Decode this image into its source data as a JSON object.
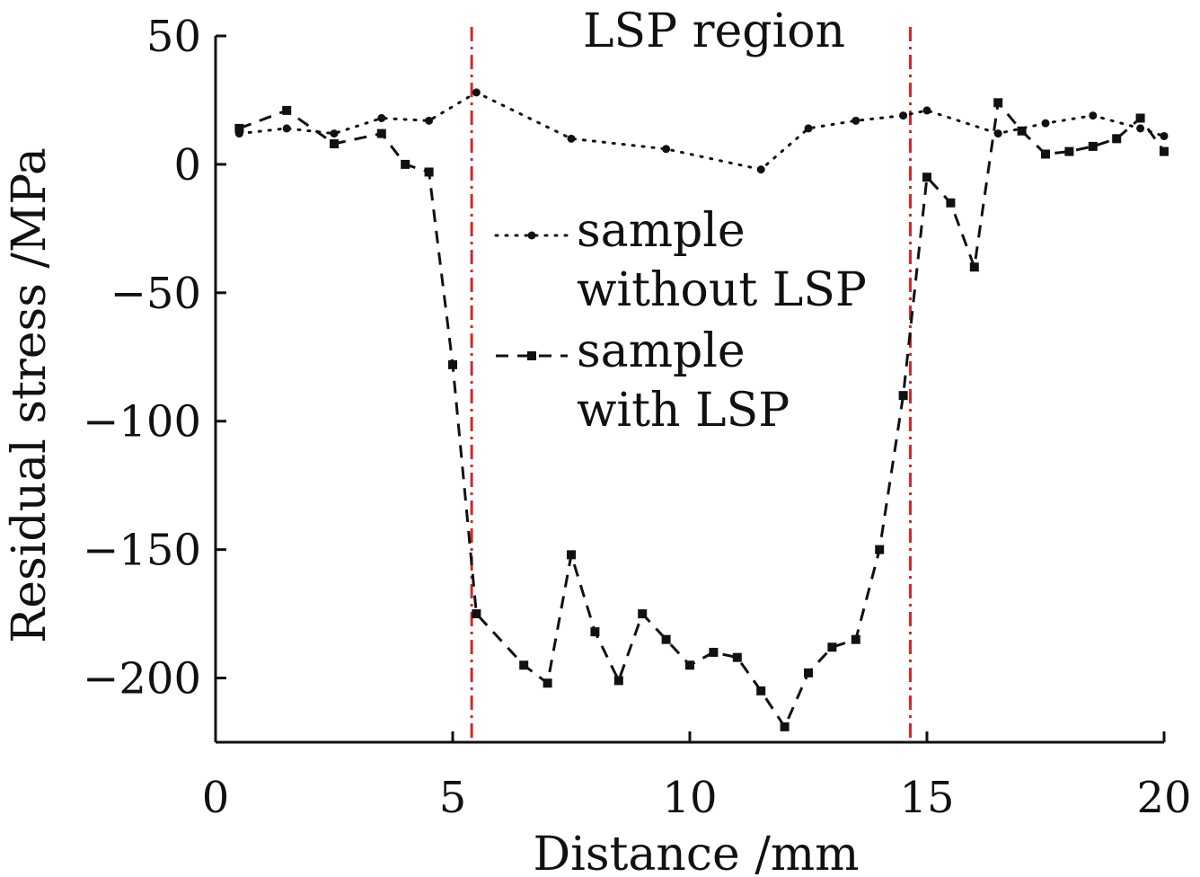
{
  "chart_data": {
    "type": "line",
    "title": "",
    "xlabel": "Distance /mm",
    "ylabel": "Residual stress /MPa",
    "xlim": [
      0,
      20
    ],
    "ylim": [
      -225,
      50
    ],
    "xticks": [
      0,
      5,
      10,
      15,
      20
    ],
    "yticks": [
      50,
      0,
      -50,
      -100,
      -150,
      -200
    ],
    "xtick_labels": [
      "0",
      "5",
      "10",
      "15",
      "20"
    ],
    "ytick_labels": [
      "50",
      "0",
      "−50",
      "−100",
      "−150",
      "−200"
    ],
    "grid": false,
    "legend_position": "center",
    "series": [
      {
        "name": "sample without LSP",
        "legend_lines": [
          "sample",
          "without LSP"
        ],
        "style": "dotted",
        "marker": "circle",
        "color": "#111111",
        "x": [
          0.5,
          1.5,
          2.5,
          3.5,
          4.5,
          5.5,
          7.5,
          9.5,
          11.5,
          12.5,
          13.5,
          14.5,
          15.0,
          16.5,
          17.5,
          18.5,
          19.5,
          20.0
        ],
        "y": [
          12,
          14,
          12,
          18,
          17,
          28,
          10,
          6,
          -2,
          14,
          17,
          19,
          21,
          12,
          16,
          19,
          14,
          11
        ]
      },
      {
        "name": "sample with LSP",
        "legend_lines": [
          "sample",
          "with LSP"
        ],
        "style": "dashed",
        "marker": "square",
        "color": "#111111",
        "x": [
          0.5,
          1.5,
          2.5,
          3.5,
          4.0,
          4.5,
          5.0,
          5.5,
          6.5,
          7.0,
          7.5,
          8.0,
          8.5,
          9.0,
          9.5,
          10.0,
          10.5,
          11.0,
          11.5,
          12.0,
          12.5,
          13.0,
          13.5,
          14.0,
          14.5,
          15.0,
          15.5,
          16.0,
          16.5,
          17.0,
          17.5,
          18.0,
          18.5,
          19.0,
          19.5,
          20.0
        ],
        "y": [
          14,
          21,
          8,
          12,
          0,
          -3,
          -78,
          -175,
          -195,
          -202,
          -152,
          -182,
          -201,
          -175,
          -185,
          -195,
          -190,
          -192,
          -205,
          -219,
          -198,
          -188,
          -185,
          -150,
          -90,
          -5,
          -15,
          -40,
          24,
          13,
          4,
          5,
          7,
          10,
          18,
          5
        ]
      }
    ],
    "region": {
      "label": "LSP region",
      "x_start": 5.4,
      "x_end": 14.65,
      "color": "#d62728",
      "style": "dash-dot"
    }
  }
}
